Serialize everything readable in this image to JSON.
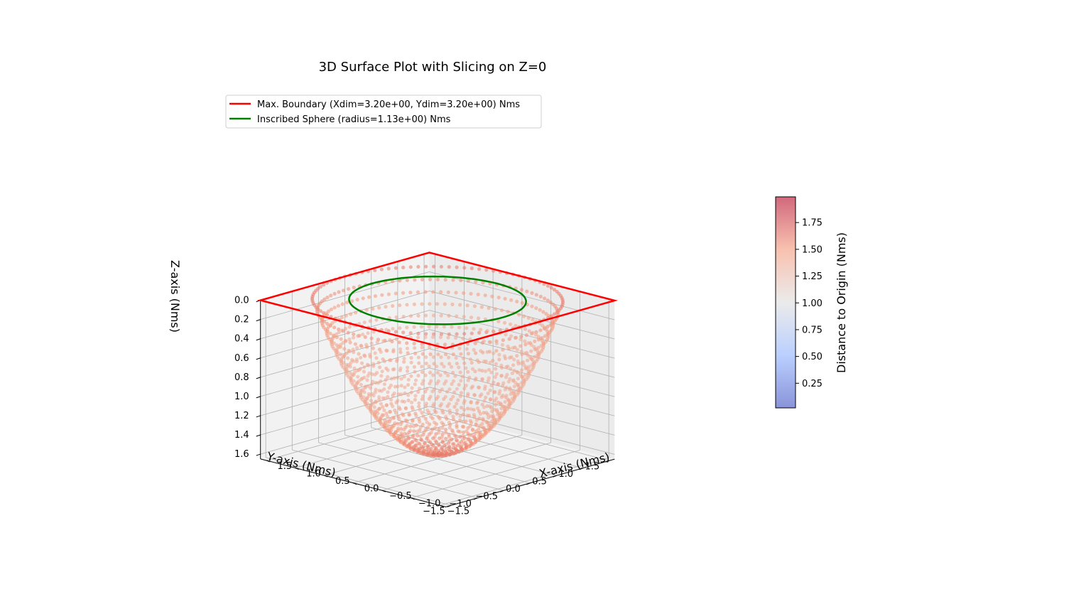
{
  "chart_data": {
    "type": "scatter",
    "projection": "3d",
    "title": "3D Surface Plot with Slicing on Z=0",
    "xlabel": "X-axis (Nms)",
    "ylabel": "Y-axis (Nms)",
    "zlabel": "Z-axis (Nms)",
    "xlim": [
      -1.6,
      1.6
    ],
    "ylim": [
      -1.6,
      1.6
    ],
    "zlim": [
      0.0,
      1.65
    ],
    "z_inverted": true,
    "x_ticks": [
      "−1.5",
      "−1.0",
      "−0.5",
      "0.0",
      "0.5",
      "1.0",
      "1.5"
    ],
    "x_tick_values": [
      -1.5,
      -1.0,
      -0.5,
      0.0,
      0.5,
      1.0,
      1.5
    ],
    "y_ticks": [
      "1.5",
      "1.0",
      "0.5",
      "0.0",
      "−0.5",
      "−1.0",
      "−1.5"
    ],
    "y_tick_values": [
      1.5,
      1.0,
      0.5,
      0.0,
      -0.5,
      -1.0,
      -1.5
    ],
    "z_ticks": [
      "0.0",
      "0.2",
      "0.4",
      "0.6",
      "0.8",
      "1.0",
      "1.2",
      "1.4",
      "1.6"
    ],
    "z_tick_values": [
      0.0,
      0.2,
      0.4,
      0.6,
      0.8,
      1.0,
      1.2,
      1.4,
      1.6
    ],
    "grid": true,
    "legend_placement": "upper-left",
    "legend": [
      {
        "label": "Max. Boundary (Xdim=3.20e+00, Ydim=3.20e+00) Nms",
        "color": "#ff0000"
      },
      {
        "label": "Inscribed Sphere (radius=1.13e+00) Nms",
        "color": "#008000"
      }
    ],
    "max_boundary": {
      "x": [
        -1.6,
        1.6,
        1.6,
        -1.6,
        -1.6
      ],
      "y": [
        -1.6,
        -1.6,
        1.6,
        1.6,
        -1.6
      ],
      "z": 0.0
    },
    "inscribed_sphere": {
      "radius": 1.13,
      "z": 0.0
    },
    "surface": {
      "description_values": {
        "rim_radius": 1.6,
        "depth": 1.6
      },
      "colormap": "coolwarm"
    },
    "colorbar": {
      "label": "Distance to Origin (Nms)",
      "ticks": [
        "0.25",
        "0.50",
        "0.75",
        "1.00",
        "1.25",
        "1.50",
        "1.75"
      ],
      "tick_values": [
        0.25,
        0.5,
        0.75,
        1.0,
        1.25,
        1.5,
        1.75
      ],
      "range": [
        0.02,
        1.99
      ]
    }
  }
}
